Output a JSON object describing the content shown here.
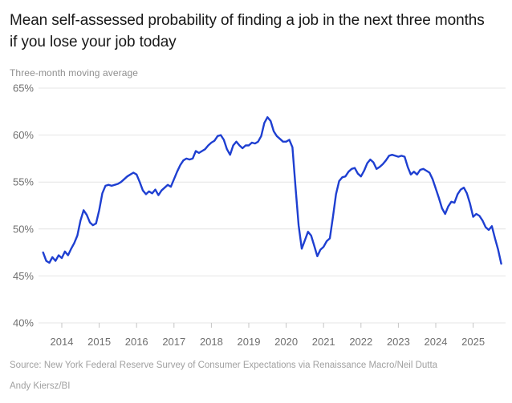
{
  "header": {
    "title": "Mean self-assessed probability of finding a job in the next three months if you lose your job today",
    "subtitle": "Three-month moving average"
  },
  "footer": {
    "source": "Source: New York Federal Reserve Survey of Consumer Expectations via Renaissance Macro/Neil Dutta",
    "byline": "Andy Kiersz/BI"
  },
  "chart_data": {
    "type": "line",
    "title": "Mean self-assessed probability of finding a job in the next three months if you lose your job today",
    "subtitle": "Three-month moving average",
    "unit": "%",
    "line_color": "#1e3fd1",
    "grid_color": "#e4e4e4",
    "axis_text_color": "#6f6f6f",
    "ylim": [
      40,
      65
    ],
    "y_ticks": [
      {
        "value": 65,
        "label": "65%"
      },
      {
        "value": 60,
        "label": "60%"
      },
      {
        "value": 55,
        "label": "55%"
      },
      {
        "value": 50,
        "label": "50%"
      },
      {
        "value": 45,
        "label": "45%"
      },
      {
        "value": 40,
        "label": "40%"
      }
    ],
    "x_ticks": [
      "2014",
      "2015",
      "2016",
      "2017",
      "2018",
      "2019",
      "2020",
      "2021",
      "2022",
      "2023",
      "2024",
      "2025"
    ],
    "legend": "none",
    "grid": "horizontal",
    "x_start": "2013-07",
    "x_step_months": 1,
    "series": [
      {
        "name": "Mean self-assessed probability of finding a job (3-month moving average, %)",
        "values": [
          47.5,
          46.6,
          46.4,
          47.0,
          46.6,
          47.2,
          46.9,
          47.6,
          47.2,
          47.9,
          48.5,
          49.3,
          50.9,
          52.0,
          51.5,
          50.7,
          50.4,
          50.6,
          52.0,
          53.8,
          54.6,
          54.7,
          54.6,
          54.7,
          54.8,
          55.0,
          55.3,
          55.6,
          55.8,
          56.0,
          55.8,
          55.0,
          54.1,
          53.7,
          54.0,
          53.8,
          54.2,
          53.6,
          54.1,
          54.4,
          54.7,
          54.5,
          55.3,
          56.1,
          56.8,
          57.3,
          57.5,
          57.4,
          57.5,
          58.3,
          58.1,
          58.3,
          58.5,
          58.9,
          59.2,
          59.4,
          59.9,
          60.0,
          59.5,
          58.5,
          57.9,
          58.9,
          59.3,
          58.9,
          58.6,
          58.9,
          58.9,
          59.2,
          59.1,
          59.3,
          59.9,
          61.3,
          61.9,
          61.5,
          60.4,
          59.9,
          59.6,
          59.3,
          59.3,
          59.5,
          58.7,
          54.4,
          50.4,
          47.9,
          48.8,
          49.7,
          49.3,
          48.2,
          47.1,
          47.8,
          48.1,
          48.7,
          49.0,
          51.3,
          53.7,
          55.1,
          55.5,
          55.6,
          56.1,
          56.4,
          56.5,
          55.9,
          55.6,
          56.2,
          57.0,
          57.4,
          57.1,
          56.4,
          56.6,
          56.9,
          57.3,
          57.8,
          57.9,
          57.8,
          57.7,
          57.8,
          57.7,
          56.6,
          55.8,
          56.1,
          55.8,
          56.3,
          56.4,
          56.2,
          56.0,
          55.3,
          54.3,
          53.3,
          52.2,
          51.6,
          52.4,
          52.9,
          52.8,
          53.7,
          54.2,
          54.4,
          53.8,
          52.7,
          51.3,
          51.6,
          51.4,
          50.9,
          50.2,
          49.9,
          50.3,
          49.0,
          47.8,
          46.3
        ]
      }
    ]
  }
}
